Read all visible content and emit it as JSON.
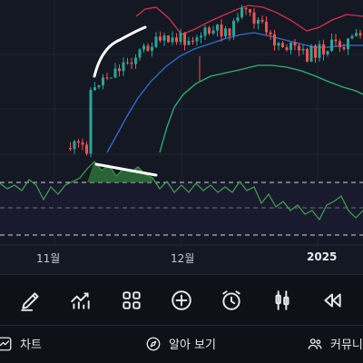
{
  "chart": {
    "axis_labels": [
      "11월",
      "12월",
      "2025"
    ],
    "colors": {
      "up": "#26a69a",
      "down": "#ef5350",
      "upper_band": "#d1334a",
      "middle_band": "#2f6fd6",
      "lower_band": "#2bb673",
      "rsi_line": "#3fa34d",
      "drawing": "#ffffff"
    }
  },
  "toolbar": {
    "items": [
      {
        "icon": "pencil-icon"
      },
      {
        "icon": "indicator-chart-icon"
      },
      {
        "icon": "grid-icon"
      },
      {
        "icon": "plus-circle-icon"
      },
      {
        "icon": "alarm-clock-icon"
      },
      {
        "icon": "candlestick-icon"
      },
      {
        "icon": "rewind-icon"
      }
    ]
  },
  "nav": {
    "chart_label": "차트",
    "explore_label": "알아 보기",
    "community_label": "커뮤니티"
  }
}
